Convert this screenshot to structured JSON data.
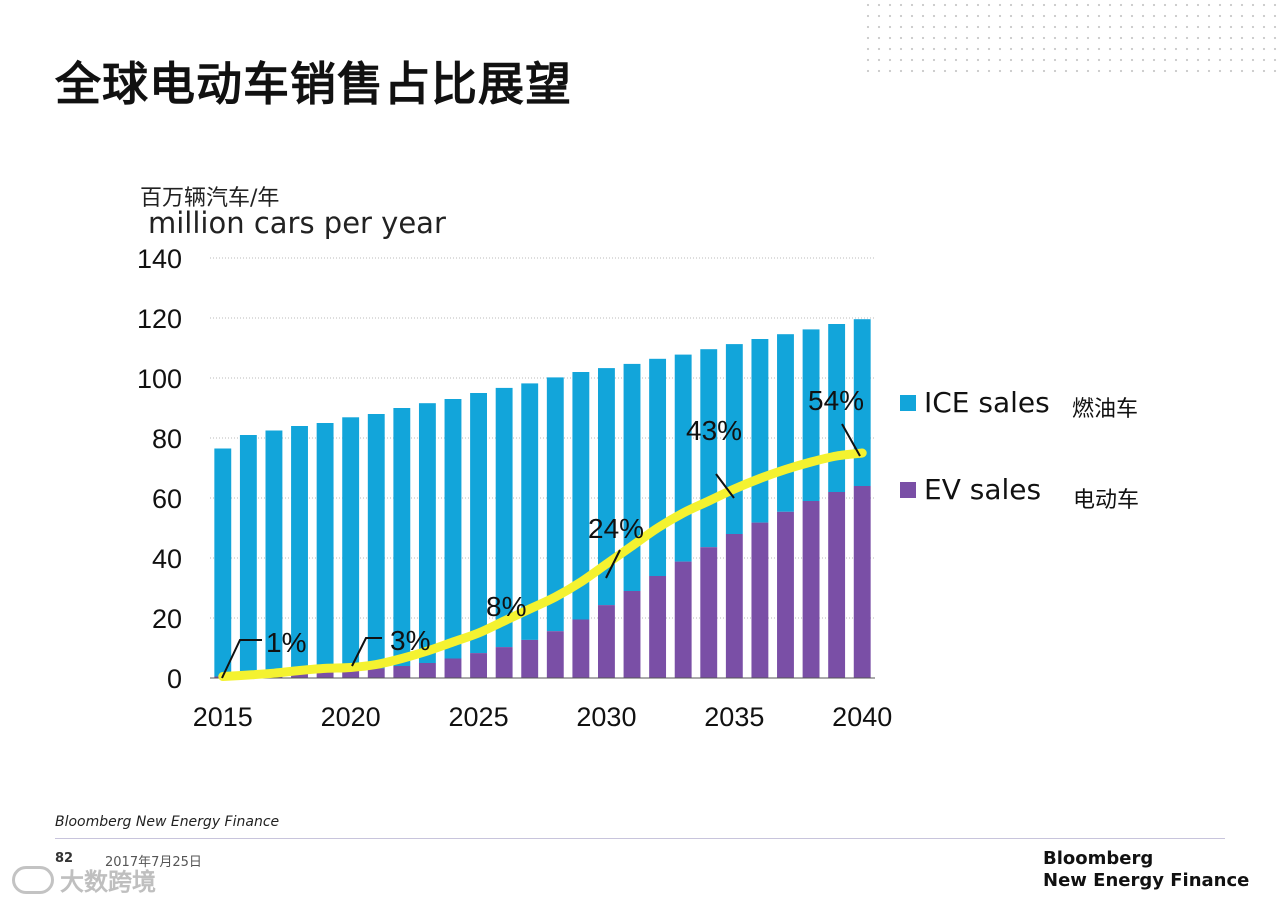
{
  "title": "全球电动车销售占比展望",
  "unit_cn": "百万辆汽车/年",
  "unit_en": "million cars per year",
  "colors": {
    "ice": "#12A5DA",
    "ev": "#7A4FA6",
    "share_line": "#F4F230",
    "grid": "#BBBBBB"
  },
  "legend": {
    "ice_label": "ICE sales",
    "ice_cn": "燃油车",
    "ev_label": "EV sales",
    "ev_cn": "电动车"
  },
  "source": "Bloomberg New Energy Finance",
  "footer": {
    "page": "82",
    "date": "2017年7月25日",
    "brand_line1": "Bloomberg",
    "brand_line2": "New Energy Finance"
  },
  "watermark": "大数跨境",
  "chart_data": {
    "type": "bar",
    "stacked": true,
    "categories": [
      "2015",
      "2016",
      "2017",
      "2018",
      "2019",
      "2020",
      "2021",
      "2022",
      "2023",
      "2024",
      "2025",
      "2026",
      "2027",
      "2028",
      "2029",
      "2030",
      "2031",
      "2032",
      "2033",
      "2034",
      "2035",
      "2036",
      "2037",
      "2038",
      "2039",
      "2040"
    ],
    "x_tick_labels": [
      "2015",
      "2020",
      "2025",
      "2030",
      "2035",
      "2040"
    ],
    "y_tick_labels": [
      "0",
      "20",
      "40",
      "60",
      "80",
      "100",
      "120",
      "140"
    ],
    "ylim": [
      0,
      140
    ],
    "grid": true,
    "legend_position": "right",
    "series": [
      {
        "name": "EV sales",
        "values": [
          0.5,
          0.8,
          1.1,
          1.5,
          2.0,
          2.5,
          3.2,
          4.0,
          5.0,
          6.5,
          8.3,
          10.3,
          12.7,
          15.6,
          19.5,
          24.3,
          29.0,
          34.0,
          38.8,
          43.6,
          48.0,
          51.8,
          55.4,
          59.0,
          62.0,
          64.0
        ]
      },
      {
        "name": "ICE sales",
        "values": [
          76.0,
          80.2,
          81.4,
          82.5,
          83.0,
          84.4,
          84.8,
          86.0,
          86.6,
          86.5,
          86.7,
          86.4,
          85.5,
          84.6,
          82.5,
          79.0,
          75.7,
          72.4,
          69.0,
          66.0,
          63.3,
          61.2,
          59.2,
          57.2,
          56.0,
          55.6
        ]
      }
    ],
    "ev_share_line": {
      "name": "EV share",
      "values": [
        0.5,
        1.0,
        1.6,
        2.5,
        3.2,
        3.5,
        4.5,
        6.5,
        9.0,
        12.0,
        15.0,
        19.0,
        23.0,
        27.0,
        32.0,
        38.0,
        44.0,
        50.0,
        55.0,
        59.0,
        63.0,
        66.5,
        69.5,
        72.0,
        74.0,
        75.0
      ]
    },
    "annotations": [
      "1%",
      "3%",
      "8%",
      "24%",
      "43%",
      "54%"
    ]
  }
}
